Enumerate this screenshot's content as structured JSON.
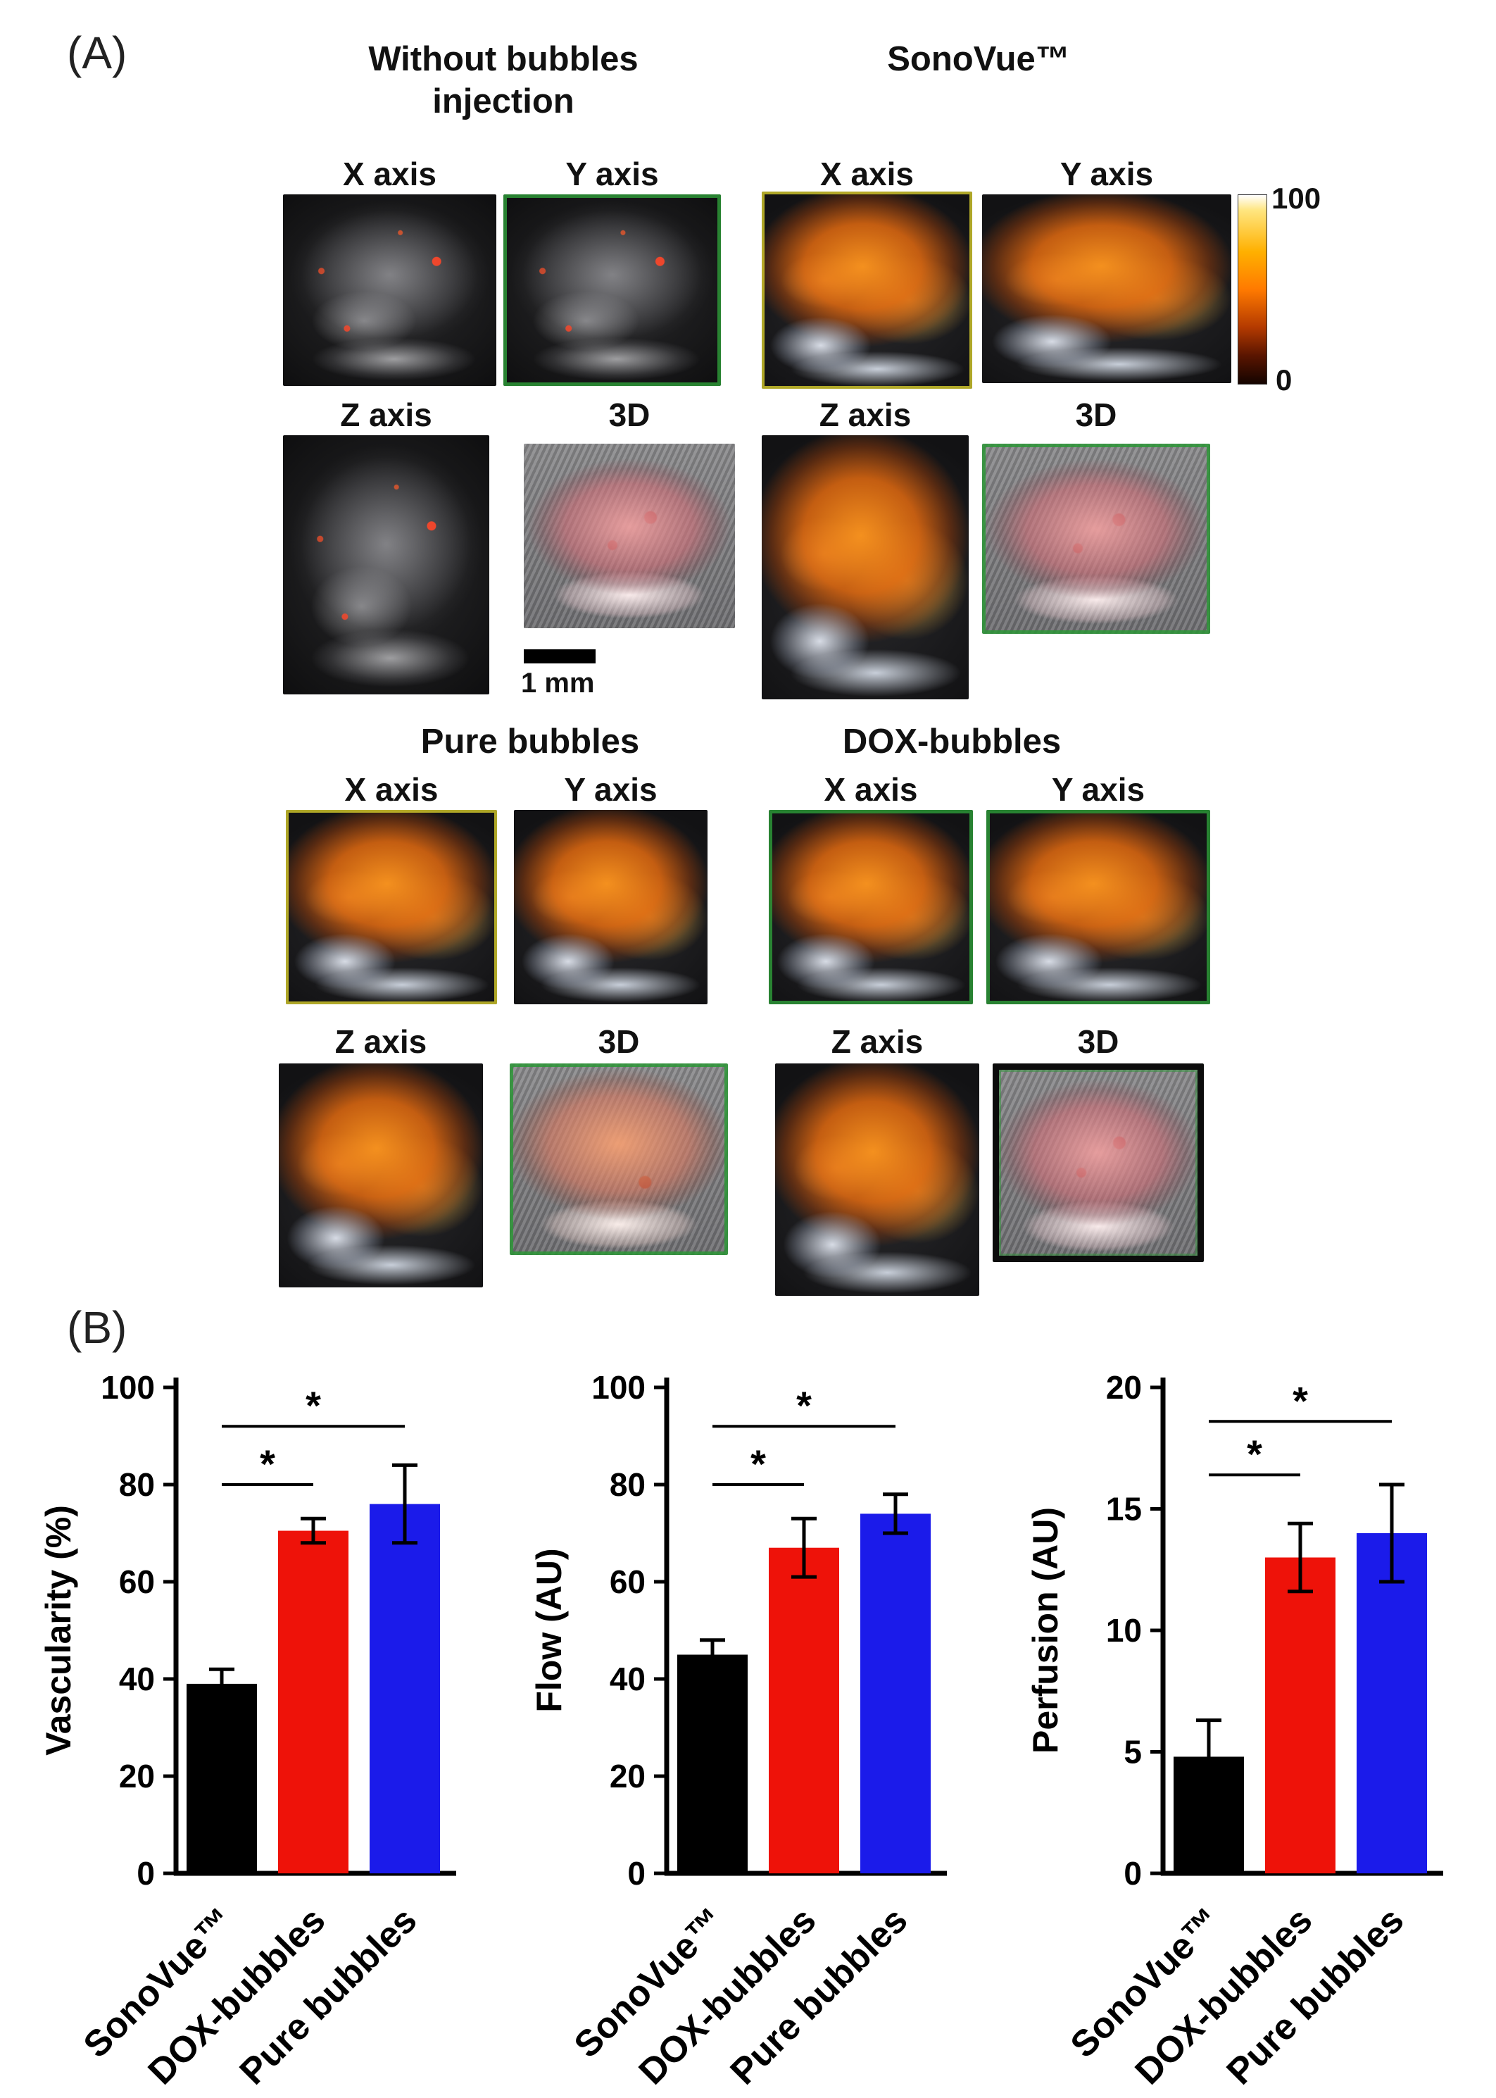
{
  "panelA": {
    "label": "(A)",
    "axis_labels": [
      "X axis",
      "Y axis",
      "Z axis",
      "3D"
    ],
    "groups": [
      {
        "title_lines": [
          "Without bubbles",
          "injection"
        ]
      },
      {
        "title_lines": [
          "SonoVue™"
        ]
      },
      {
        "title_lines": [
          "Pure bubbles"
        ]
      },
      {
        "title_lines": [
          "DOX-bubbles"
        ]
      }
    ],
    "colorbar": {
      "max": "100",
      "min": "0"
    },
    "scalebar_label": "1 mm"
  },
  "panelB": {
    "label": "(B)"
  },
  "chart_data": [
    {
      "type": "bar",
      "ylabel": "Vascularity (%)",
      "categories": [
        "SonoVue™",
        "DOX-bubbles",
        "Pure bubbles"
      ],
      "values": [
        39,
        70.5,
        76
      ],
      "errors": [
        3,
        2.5,
        8
      ],
      "colors": [
        "#000000",
        "#ee1209",
        "#1b1bea"
      ],
      "ylim": [
        0,
        100
      ],
      "yticks": [
        0,
        20,
        40,
        60,
        80,
        100
      ],
      "significance": [
        {
          "pair": [
            0,
            1
          ],
          "y": 80,
          "label": "*"
        },
        {
          "pair": [
            0,
            2
          ],
          "y": 92,
          "label": "*"
        }
      ]
    },
    {
      "type": "bar",
      "ylabel": "Flow (AU)",
      "categories": [
        "SonoVue™",
        "DOX-bubbles",
        "Pure bubbles"
      ],
      "values": [
        45,
        67,
        74
      ],
      "errors": [
        3,
        6,
        4
      ],
      "colors": [
        "#000000",
        "#ee1209",
        "#1b1bea"
      ],
      "ylim": [
        0,
        100
      ],
      "yticks": [
        0,
        20,
        40,
        60,
        80,
        100
      ],
      "significance": [
        {
          "pair": [
            0,
            1
          ],
          "y": 80,
          "label": "*"
        },
        {
          "pair": [
            0,
            2
          ],
          "y": 92,
          "label": "*"
        }
      ]
    },
    {
      "type": "bar",
      "ylabel": "Perfusion (AU)",
      "categories": [
        "SonoVue™",
        "DOX-bubbles",
        "Pure bubbles"
      ],
      "values": [
        4.8,
        13,
        14
      ],
      "errors": [
        1.5,
        1.4,
        2
      ],
      "colors": [
        "#000000",
        "#ee1209",
        "#1b1bea"
      ],
      "ylim": [
        0,
        20
      ],
      "yticks": [
        0,
        5,
        10,
        15,
        20
      ],
      "significance": [
        {
          "pair": [
            0,
            1
          ],
          "y": 16.4,
          "label": "*"
        },
        {
          "pair": [
            0,
            2
          ],
          "y": 18.6,
          "label": "*"
        }
      ]
    }
  ]
}
